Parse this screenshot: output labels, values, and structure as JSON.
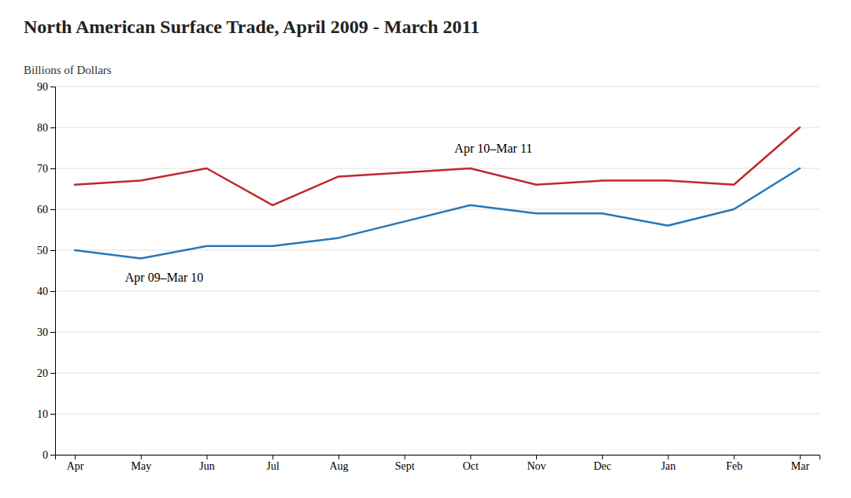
{
  "chart_data": {
    "type": "line",
    "title": "North American Surface Trade, April 2009 - March 2011",
    "ylabel": "Billions of Dollars",
    "categories": [
      "Apr",
      "May",
      "Jun",
      "Jul",
      "Aug",
      "Sept",
      "Oct",
      "Nov",
      "Dec",
      "Jan",
      "Feb",
      "Mar"
    ],
    "series": [
      {
        "name": "Apr 09–Mar 10",
        "color": "#2777b8",
        "values": [
          50,
          48,
          51,
          51,
          53,
          57,
          61,
          59,
          59,
          56,
          60,
          70
        ]
      },
      {
        "name": "Apr 10–Mar 11",
        "color": "#c0282d",
        "values": [
          66,
          67,
          70,
          61,
          68,
          69,
          70,
          66,
          67,
          67,
          66,
          80
        ]
      }
    ],
    "ylim": [
      0,
      90
    ],
    "yticks": [
      0,
      10,
      20,
      30,
      40,
      50,
      60,
      70,
      80,
      90
    ],
    "grid": true
  }
}
